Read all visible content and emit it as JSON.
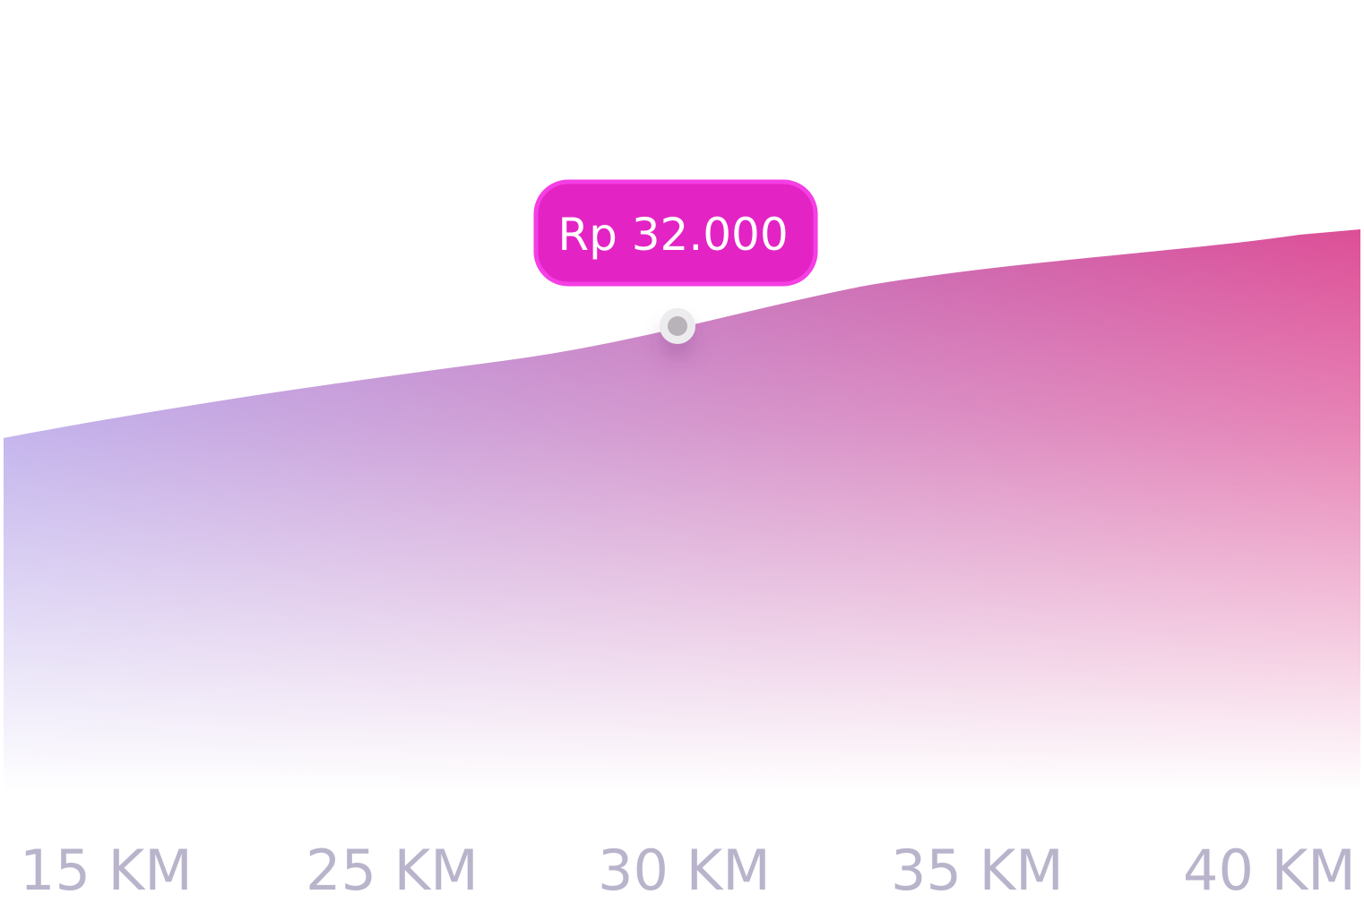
{
  "colors": {
    "gradient_start": "#a993e4",
    "gradient_mid": "#c66ab6",
    "gradient_end": "#dd4f97",
    "tooltip_fill": "#e323c4",
    "tooltip_border": "#f53ee4",
    "tooltip_text": "#ffffff",
    "axis_text": "#b9b4cb",
    "marker": "#b8b3b9"
  },
  "chart_data": {
    "type": "area",
    "categories": [
      "15 KM",
      "25 KM",
      "30 KM",
      "35 KM",
      "40 KM"
    ],
    "highlight": {
      "category": "30 KM",
      "label": "Rp 32.000"
    },
    "grid": false,
    "legend": "none"
  }
}
